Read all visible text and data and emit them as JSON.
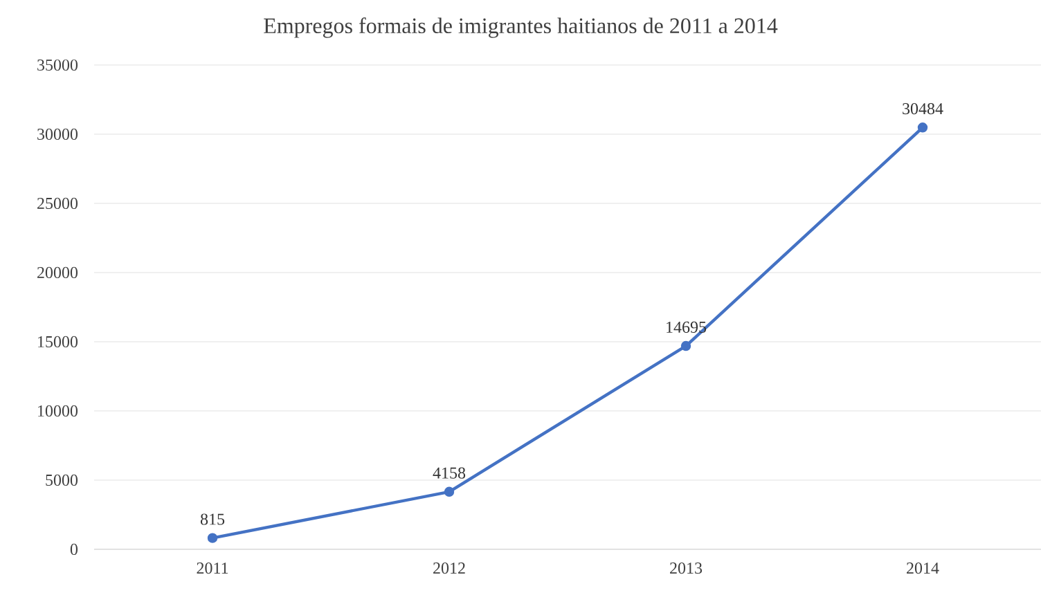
{
  "chart_data": {
    "type": "line",
    "title": "Empregos formais de imigrantes haitianos de 2011 a 2014",
    "categories": [
      "2011",
      "2012",
      "2013",
      "2014"
    ],
    "series": [
      {
        "color": "#4472c4",
        "values": [
          815,
          4158,
          14695,
          30484
        ]
      }
    ],
    "ylim": [
      0,
      35000
    ],
    "yticks": [
      0,
      5000,
      10000,
      15000,
      20000,
      25000,
      30000,
      35000
    ],
    "grid": "y",
    "marker": "circle",
    "line_style": "solid",
    "data_labels": true
  }
}
